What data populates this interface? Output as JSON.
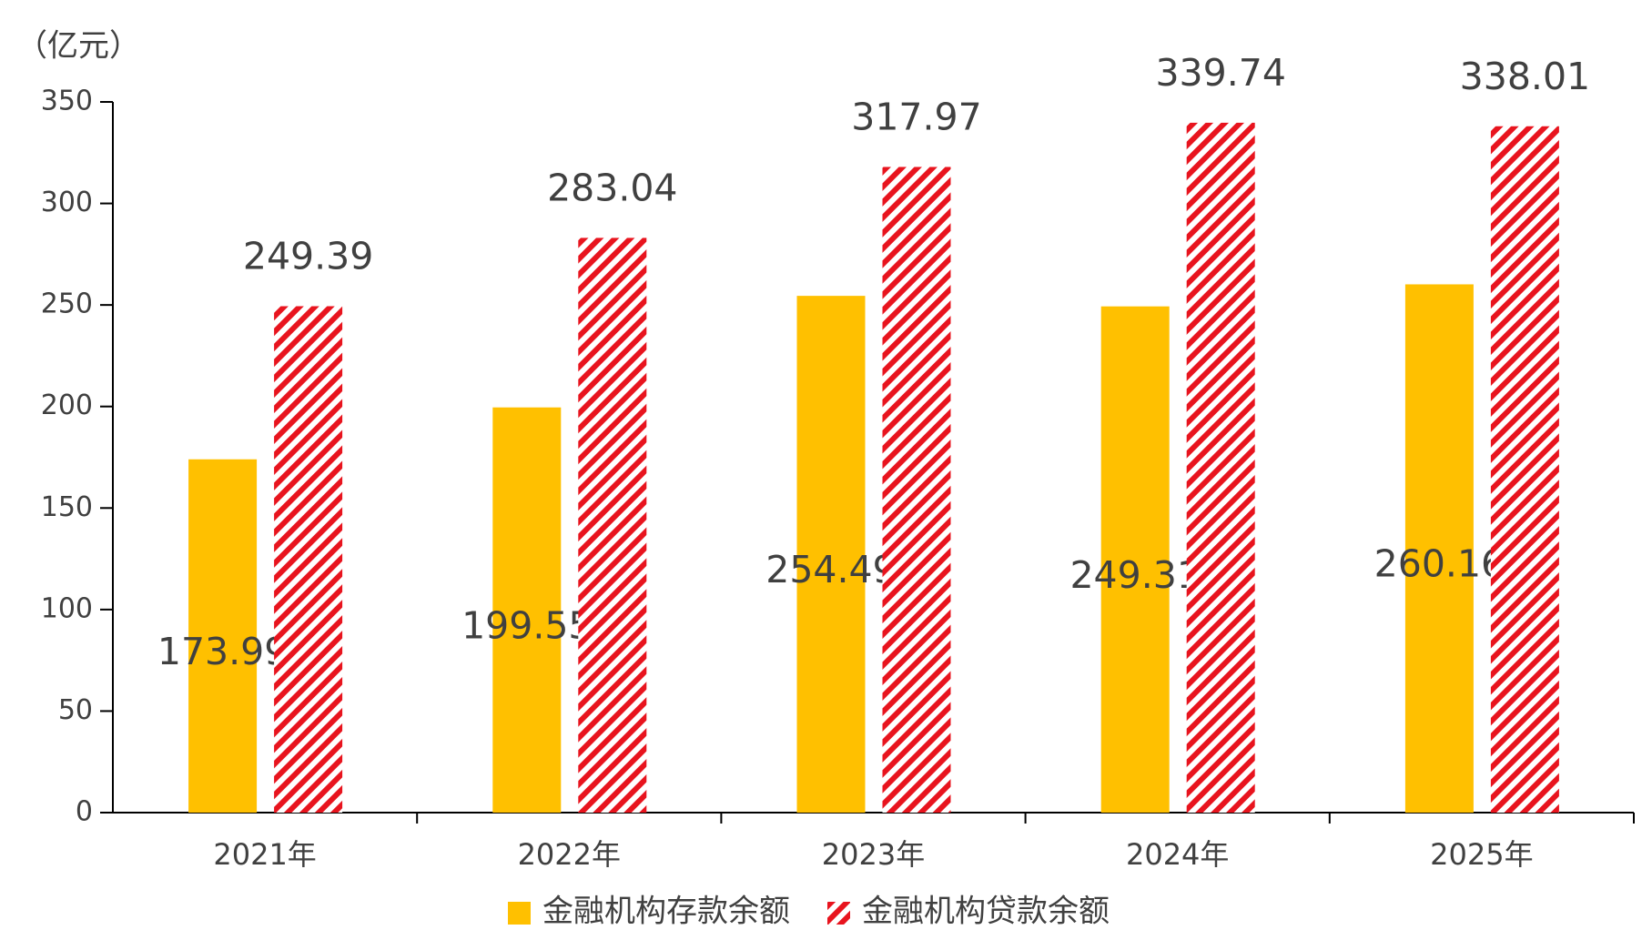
{
  "chart_data": {
    "type": "bar",
    "y_unit_label": "（亿元）",
    "categories": [
      "2021年",
      "2022年",
      "2023年",
      "2024年",
      "2025年"
    ],
    "series": [
      {
        "name": "金融机构存款余额",
        "color": "#ffc000",
        "values": [
          173.99,
          199.55,
          254.49,
          249.31,
          260.16
        ]
      },
      {
        "name": "金融机构贷款余额",
        "color": "#e8141e",
        "hatch": true,
        "values": [
          249.39,
          283.04,
          317.97,
          339.74,
          338.01
        ]
      }
    ],
    "ylim": [
      0,
      350
    ],
    "yticks": [
      0,
      50,
      100,
      150,
      200,
      250,
      300,
      350
    ],
    "grid": false,
    "legend": "bottom"
  }
}
